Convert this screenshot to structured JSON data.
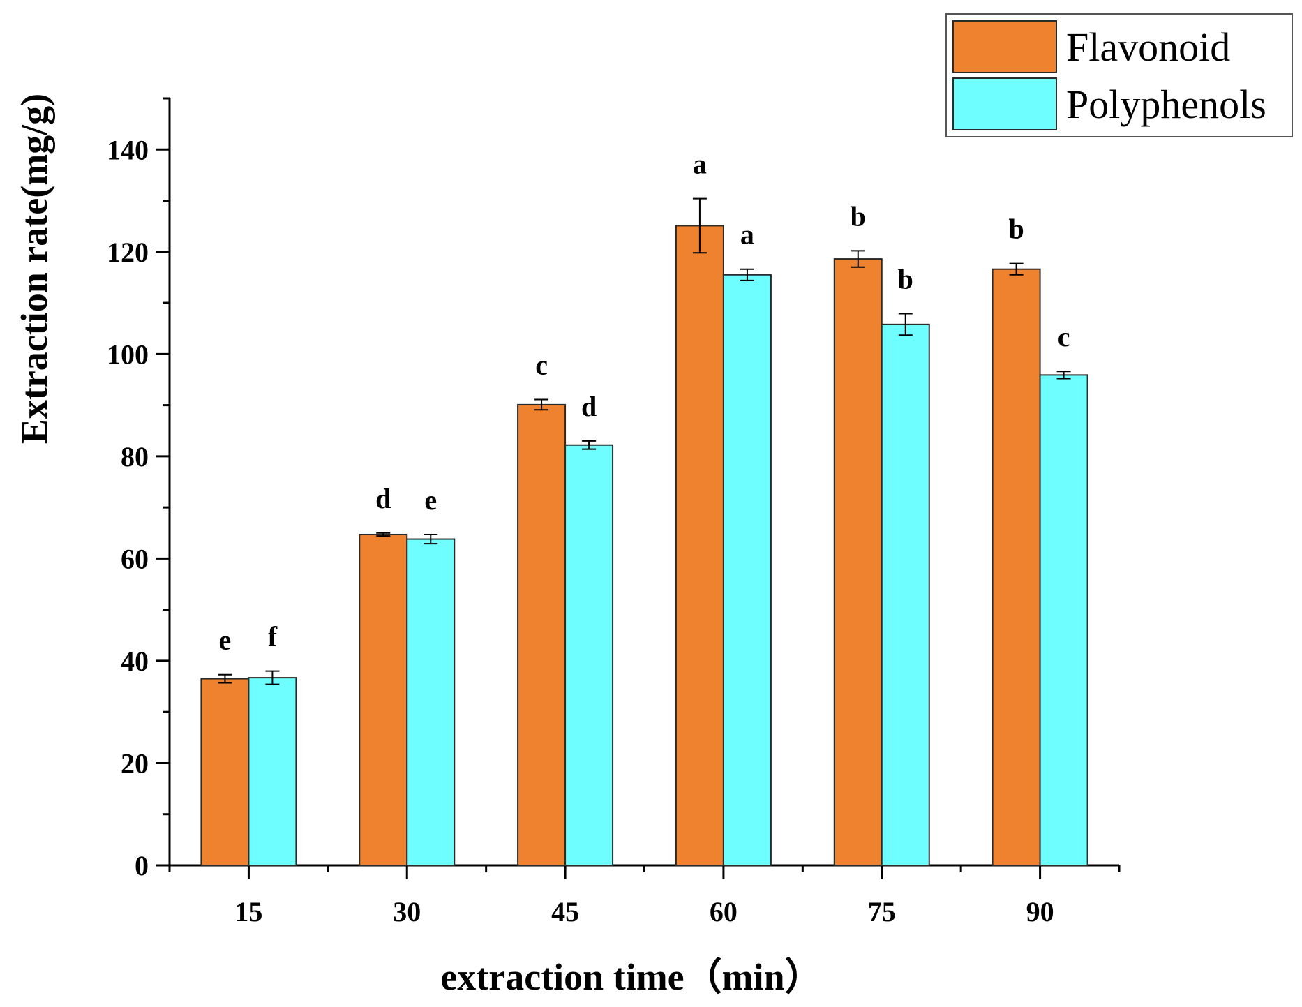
{
  "chart_data": {
    "type": "bar",
    "title": "",
    "xlabel": "extraction time（min）",
    "ylabel": "Extraction rate(mg/g)",
    "categories": [
      "15",
      "30",
      "45",
      "60",
      "75",
      "90"
    ],
    "ylim": [
      0,
      150
    ],
    "yticks": [
      0,
      20,
      40,
      60,
      80,
      100,
      120,
      140
    ],
    "ytick_labels": [
      "0",
      "20",
      "40",
      "60",
      "80",
      "100",
      "120",
      "140"
    ],
    "legend_position": "top-right",
    "grid": false,
    "series": [
      {
        "name": "Flavonoid",
        "color": "#EE822F",
        "values": [
          36.5,
          64.7,
          90.1,
          125.1,
          118.6,
          116.6
        ],
        "errors": [
          0.8,
          0.3,
          1.0,
          5.3,
          1.6,
          1.1
        ],
        "labels": [
          "e",
          "d",
          "c",
          "a",
          "b",
          "b"
        ]
      },
      {
        "name": "Polyphenols",
        "color": "#6FFEFF",
        "values": [
          36.7,
          63.8,
          82.2,
          115.5,
          105.8,
          95.9
        ],
        "errors": [
          1.3,
          0.9,
          0.8,
          1.1,
          2.1,
          0.7
        ],
        "labels": [
          "f",
          "e",
          "d",
          "a",
          "b",
          "c"
        ]
      }
    ]
  }
}
